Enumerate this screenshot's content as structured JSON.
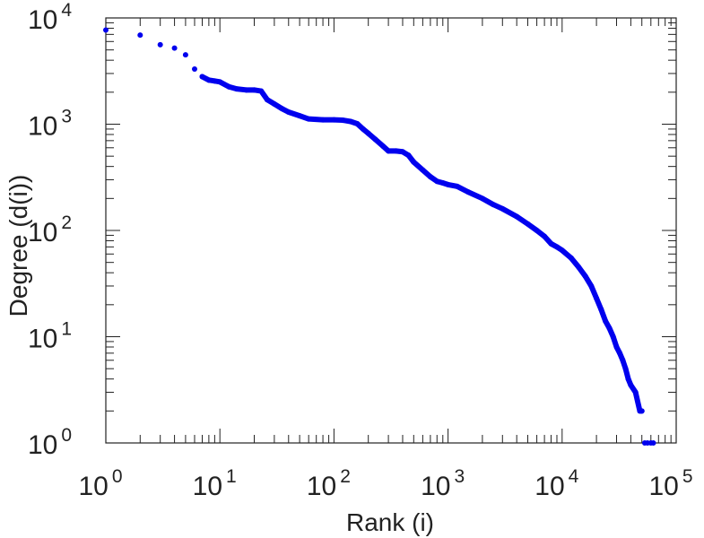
{
  "chart_data": {
    "type": "scatter",
    "title": "",
    "xlabel": "Rank (i)",
    "ylabel": "Degree (d(i))",
    "xscale": "log",
    "yscale": "log",
    "xlim": [
      1,
      100000
    ],
    "ylim": [
      1,
      10000
    ],
    "grid": false,
    "marker_color": "#0000ee",
    "x_ticks": [
      {
        "base": "10",
        "exp": "0"
      },
      {
        "base": "10",
        "exp": "1"
      },
      {
        "base": "10",
        "exp": "2"
      },
      {
        "base": "10",
        "exp": "3"
      },
      {
        "base": "10",
        "exp": "4"
      },
      {
        "base": "10",
        "exp": "5"
      }
    ],
    "y_ticks": [
      {
        "base": "10",
        "exp": "0"
      },
      {
        "base": "10",
        "exp": "1"
      },
      {
        "base": "10",
        "exp": "2"
      },
      {
        "base": "10",
        "exp": "3"
      },
      {
        "base": "10",
        "exp": "4"
      }
    ],
    "points": [
      [
        1,
        7700
      ],
      [
        2,
        6900
      ],
      [
        3,
        5600
      ],
      [
        4,
        5200
      ],
      [
        5,
        4500
      ],
      [
        6,
        3300
      ],
      [
        7,
        2800
      ],
      [
        8,
        2600
      ],
      [
        9,
        2550
      ],
      [
        10,
        2500
      ],
      [
        12,
        2250
      ],
      [
        14,
        2150
      ],
      [
        17,
        2100
      ],
      [
        20,
        2100
      ],
      [
        23,
        2050
      ],
      [
        26,
        1700
      ],
      [
        30,
        1550
      ],
      [
        35,
        1400
      ],
      [
        40,
        1300
      ],
      [
        50,
        1200
      ],
      [
        60,
        1120
      ],
      [
        80,
        1100
      ],
      [
        100,
        1100
      ],
      [
        120,
        1090
      ],
      [
        140,
        1060
      ],
      [
        160,
        1010
      ],
      [
        180,
        900
      ],
      [
        200,
        820
      ],
      [
        230,
        720
      ],
      [
        270,
        620
      ],
      [
        300,
        560
      ],
      [
        350,
        560
      ],
      [
        400,
        550
      ],
      [
        450,
        510
      ],
      [
        500,
        440
      ],
      [
        600,
        370
      ],
      [
        700,
        320
      ],
      [
        800,
        290
      ],
      [
        900,
        280
      ],
      [
        1000,
        270
      ],
      [
        1200,
        260
      ],
      [
        1500,
        230
      ],
      [
        2000,
        200
      ],
      [
        2500,
        175
      ],
      [
        3000,
        160
      ],
      [
        4000,
        135
      ],
      [
        5000,
        115
      ],
      [
        6000,
        100
      ],
      [
        7000,
        88
      ],
      [
        8000,
        75
      ],
      [
        9000,
        70
      ],
      [
        10000,
        65
      ],
      [
        12000,
        55
      ],
      [
        14000,
        45
      ],
      [
        16000,
        37
      ],
      [
        18000,
        30
      ],
      [
        20000,
        23
      ],
      [
        22000,
        18
      ],
      [
        24000,
        14
      ],
      [
        26000,
        12
      ],
      [
        28000,
        10
      ],
      [
        30000,
        8
      ],
      [
        32000,
        7
      ],
      [
        34000,
        6
      ],
      [
        36000,
        5
      ],
      [
        38000,
        4
      ],
      [
        40000,
        3.5
      ],
      [
        44000,
        3
      ],
      [
        48000,
        2
      ],
      [
        50000,
        2
      ],
      [
        53000,
        1
      ],
      [
        56000,
        1
      ],
      [
        60000,
        1
      ],
      [
        63000,
        1
      ]
    ]
  }
}
